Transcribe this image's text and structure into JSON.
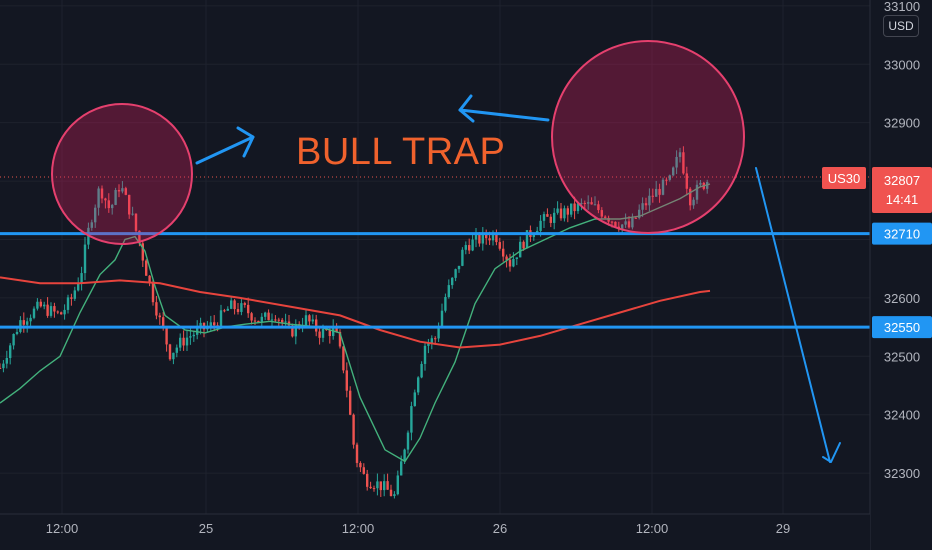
{
  "chart_data": {
    "type": "candlestick",
    "symbol": "US30",
    "currency": "USD",
    "last_price": "32807",
    "countdown": "14:41",
    "y_axis": {
      "range": [
        32230,
        33110
      ],
      "ticks": [
        32300,
        32400,
        32500,
        32600,
        32700,
        32800,
        32900,
        33000,
        33100
      ]
    },
    "x_axis": {
      "range_index": [
        0,
        929
      ],
      "ticks": [
        {
          "label": "12:00",
          "index": 62
        },
        {
          "label": "25",
          "index": 206
        },
        {
          "label": "12:00",
          "index": 358
        },
        {
          "label": "26",
          "index": 500
        },
        {
          "label": "12:00",
          "index": 652
        },
        {
          "label": "29",
          "index": 783
        }
      ]
    },
    "horizontal_lines": [
      {
        "price": 32710,
        "label": "32710",
        "color": "#2196f3"
      },
      {
        "price": 32550,
        "label": "32550",
        "color": "#2196f3"
      }
    ],
    "price_path": [
      [
        0,
        32480
      ],
      [
        20,
        32560
      ],
      [
        40,
        32585
      ],
      [
        60,
        32570
      ],
      [
        72,
        32600
      ],
      [
        82,
        32650
      ],
      [
        90,
        32730
      ],
      [
        100,
        32790
      ],
      [
        110,
        32750
      ],
      [
        120,
        32795
      ],
      [
        132,
        32740
      ],
      [
        140,
        32690
      ],
      [
        150,
        32620
      ],
      [
        160,
        32560
      ],
      [
        170,
        32505
      ],
      [
        185,
        32530
      ],
      [
        200,
        32545
      ],
      [
        215,
        32555
      ],
      [
        230,
        32585
      ],
      [
        245,
        32580
      ],
      [
        260,
        32560
      ],
      [
        275,
        32575
      ],
      [
        290,
        32540
      ],
      [
        305,
        32565
      ],
      [
        320,
        32540
      ],
      [
        335,
        32545
      ],
      [
        345,
        32470
      ],
      [
        355,
        32330
      ],
      [
        365,
        32290
      ],
      [
        380,
        32280
      ],
      [
        395,
        32260
      ],
      [
        405,
        32350
      ],
      [
        415,
        32450
      ],
      [
        425,
        32520
      ],
      [
        435,
        32530
      ],
      [
        445,
        32600
      ],
      [
        455,
        32640
      ],
      [
        465,
        32690
      ],
      [
        480,
        32700
      ],
      [
        495,
        32710
      ],
      [
        510,
        32660
      ],
      [
        525,
        32700
      ],
      [
        540,
        32730
      ],
      [
        555,
        32740
      ],
      [
        570,
        32750
      ],
      [
        585,
        32760
      ],
      [
        600,
        32750
      ],
      [
        615,
        32730
      ],
      [
        630,
        32720
      ],
      [
        640,
        32750
      ],
      [
        655,
        32780
      ],
      [
        670,
        32800
      ],
      [
        680,
        32850
      ],
      [
        690,
        32770
      ],
      [
        700,
        32790
      ],
      [
        710,
        32805
      ]
    ],
    "series": [
      {
        "color": "#43b17c",
        "points": [
          [
            0,
            32420
          ],
          [
            20,
            32445
          ],
          [
            40,
            32475
          ],
          [
            60,
            32500
          ],
          [
            80,
            32575
          ],
          [
            100,
            32640
          ],
          [
            115,
            32665
          ],
          [
            125,
            32700
          ],
          [
            135,
            32705
          ],
          [
            145,
            32680
          ],
          [
            155,
            32620
          ],
          [
            165,
            32570
          ],
          [
            185,
            32545
          ],
          [
            205,
            32540
          ],
          [
            225,
            32550
          ],
          [
            245,
            32555
          ],
          [
            270,
            32560
          ],
          [
            290,
            32555
          ],
          [
            320,
            32550
          ],
          [
            340,
            32540
          ],
          [
            360,
            32430
          ],
          [
            385,
            32340
          ],
          [
            405,
            32320
          ],
          [
            420,
            32360
          ],
          [
            435,
            32420
          ],
          [
            455,
            32490
          ],
          [
            475,
            32590
          ],
          [
            495,
            32650
          ],
          [
            520,
            32680
          ],
          [
            545,
            32700
          ],
          [
            570,
            32720
          ],
          [
            595,
            32735
          ],
          [
            620,
            32735
          ],
          [
            640,
            32740
          ],
          [
            660,
            32755
          ],
          [
            680,
            32770
          ],
          [
            700,
            32790
          ],
          [
            710,
            32795
          ]
        ]
      },
      {
        "color": "#e7443d",
        "points": [
          [
            0,
            32635
          ],
          [
            40,
            32625
          ],
          [
            80,
            32625
          ],
          [
            120,
            32630
          ],
          [
            160,
            32625
          ],
          [
            200,
            32610
          ],
          [
            240,
            32600
          ],
          [
            290,
            32585
          ],
          [
            340,
            32570
          ],
          [
            380,
            32545
          ],
          [
            420,
            32525
          ],
          [
            460,
            32515
          ],
          [
            500,
            32520
          ],
          [
            540,
            32535
          ],
          [
            580,
            32555
          ],
          [
            620,
            32575
          ],
          [
            660,
            32595
          ],
          [
            700,
            32610
          ],
          [
            710,
            32612
          ]
        ]
      }
    ],
    "annotations": {
      "text": "BULL TRAP"
    }
  }
}
